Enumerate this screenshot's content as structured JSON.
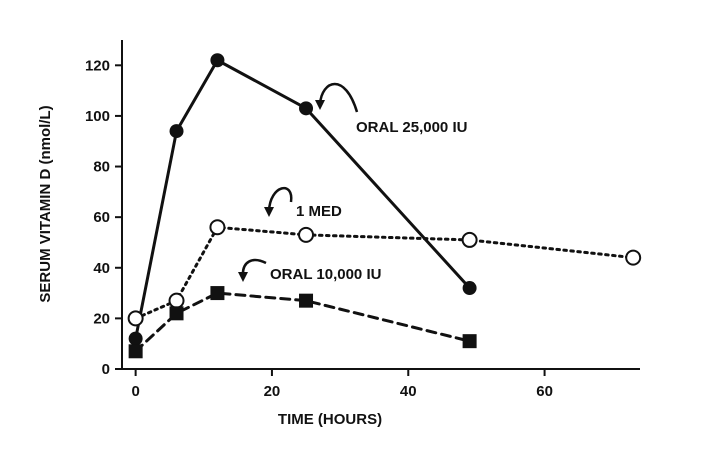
{
  "chart_data": {
    "type": "line",
    "title": "",
    "xlabel": "TIME (HOURS)",
    "ylabel": "SERUM VITAMIN D (nmol/L)",
    "xlim": [
      -2,
      74
    ],
    "ylim": [
      0,
      130
    ],
    "x_ticks": [
      0,
      20,
      40,
      60
    ],
    "y_ticks": [
      0,
      20,
      40,
      60,
      80,
      100,
      120
    ],
    "grid": false,
    "legend": "none",
    "series": [
      {
        "name": "ORAL 25,000 IU",
        "marker": "filled-circle",
        "line_style": "solid",
        "x": [
          0,
          6,
          12,
          25,
          49
        ],
        "y": [
          12,
          94,
          122,
          103,
          32
        ]
      },
      {
        "name": "1 MED",
        "marker": "open-circle",
        "line_style": "dotted",
        "x": [
          0,
          6,
          12,
          25,
          49,
          73
        ],
        "y": [
          20,
          27,
          56,
          53,
          51,
          44
        ]
      },
      {
        "name": "ORAL 10,000 IU",
        "marker": "filled-square",
        "line_style": "dashed",
        "x": [
          0,
          6,
          12,
          25,
          49
        ],
        "y": [
          7,
          22,
          30,
          27,
          11
        ]
      }
    ],
    "annotations": [
      {
        "text": "ORAL 25,000 IU",
        "series": 0
      },
      {
        "text": "1 MED",
        "series": 1
      },
      {
        "text": "ORAL 10,000 IU",
        "series": 2
      }
    ],
    "colors": {
      "ink": "#111111",
      "background": "#ffffff"
    }
  }
}
